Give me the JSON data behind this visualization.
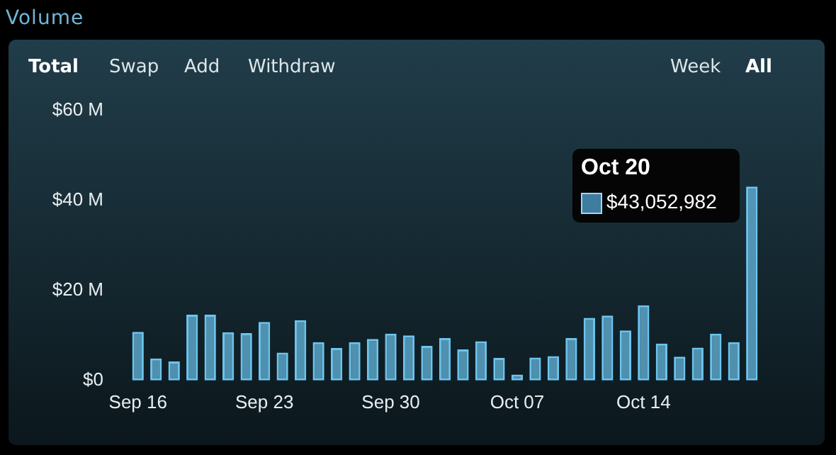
{
  "chart_data": {
    "type": "bar",
    "title": "Volume",
    "categories": [
      "Sep 16",
      null,
      null,
      null,
      null,
      null,
      null,
      "Sep 23",
      null,
      null,
      null,
      null,
      null,
      null,
      "Sep 30",
      null,
      null,
      null,
      null,
      null,
      null,
      "Oct 07",
      null,
      null,
      null,
      null,
      null,
      null,
      "Oct 14",
      null,
      null,
      null,
      null,
      null,
      null
    ],
    "values": [
      10.8,
      4.9,
      4.2,
      14.6,
      14.6,
      10.7,
      10.5,
      13.0,
      6.2,
      13.4,
      8.5,
      7.2,
      8.5,
      9.2,
      10.4,
      10.0,
      7.7,
      9.4,
      6.9,
      8.7,
      5.0,
      1.3,
      5.1,
      5.4,
      9.4,
      13.9,
      14.4,
      11.1,
      16.7,
      8.2,
      5.3,
      7.3,
      10.4,
      8.5,
      43.052982
    ],
    "color": "#6cc4ee",
    "ylim": [
      0,
      60
    ],
    "yticks": [
      {
        "value": 0,
        "label": "$0"
      },
      {
        "value": 20,
        "label": "$20 M"
      },
      {
        "value": 40,
        "label": "$40 M"
      },
      {
        "value": 60,
        "label": "$60 M"
      }
    ],
    "grid": false,
    "legend": false,
    "annotations": [
      "Total",
      "Swap",
      "Add",
      "Withdraw",
      "Week",
      "All",
      "Oct 20",
      "$43,052,982"
    ]
  }
}
